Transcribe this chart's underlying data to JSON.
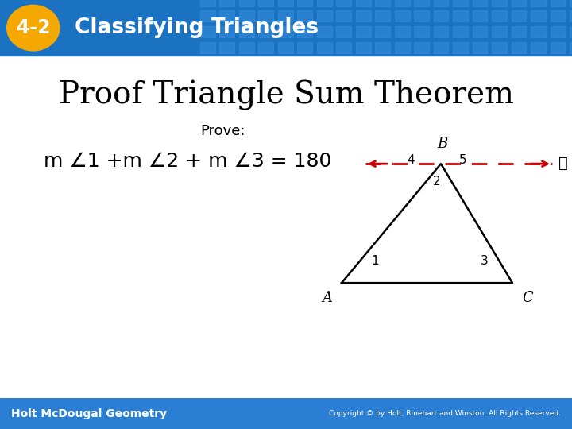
{
  "header_bg_color": "#1a72c0",
  "header_text": "Classifying Triangles",
  "header_badge": "4-2",
  "badge_bg": "#f5a800",
  "title_text": "Proof Triangle Sum Theorem",
  "prove_text": "Prove:",
  "footer_text": "Holt McDougal Geometry",
  "footer_bg": "#2a7fd4",
  "copyright_text": "Copyright © by Holt, Rinehart and Winston. All Rights Reserved.",
  "line_color": "#cc0000",
  "triangle_color": "#000000",
  "label_ell": "ℓ"
}
